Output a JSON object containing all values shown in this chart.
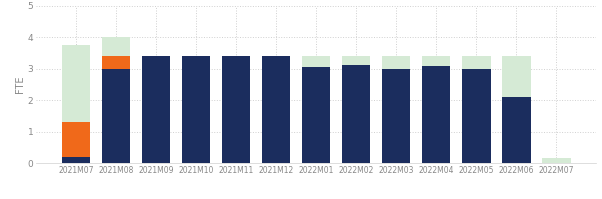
{
  "categories": [
    "2021M07",
    "2021M08",
    "2021M09",
    "2021M10",
    "2021M11",
    "2021M12",
    "2022M01",
    "2022M02",
    "2022M03",
    "2022M04",
    "2022M05",
    "2022M06",
    "2022M07"
  ],
  "navy_values": [
    0.2,
    3.0,
    3.4,
    3.4,
    3.4,
    3.4,
    3.05,
    3.12,
    3.0,
    3.1,
    2.98,
    2.1,
    0.0
  ],
  "orange_values": [
    1.1,
    0.4,
    0.0,
    0.0,
    0.0,
    0.0,
    0.0,
    0.0,
    0.0,
    0.0,
    0.0,
    0.0,
    0.0
  ],
  "green_bg": [
    3.75,
    4.0,
    3.4,
    3.4,
    3.4,
    3.4,
    3.4,
    3.4,
    3.4,
    3.4,
    3.4,
    3.4,
    0.15
  ],
  "navy_color": "#1b2d5e",
  "orange_color": "#f0691a",
  "green_color": "#d5ead5",
  "green_top_color": "#e8f4e8",
  "background": "#ffffff",
  "grid_color": "#d0d0d0",
  "ylabel": "FTE",
  "ylim": [
    0,
    5
  ],
  "yticks": [
    0,
    1,
    2,
    3,
    4,
    5
  ],
  "bar_width": 0.72,
  "figsize": [
    6.02,
    1.99
  ],
  "dpi": 100
}
